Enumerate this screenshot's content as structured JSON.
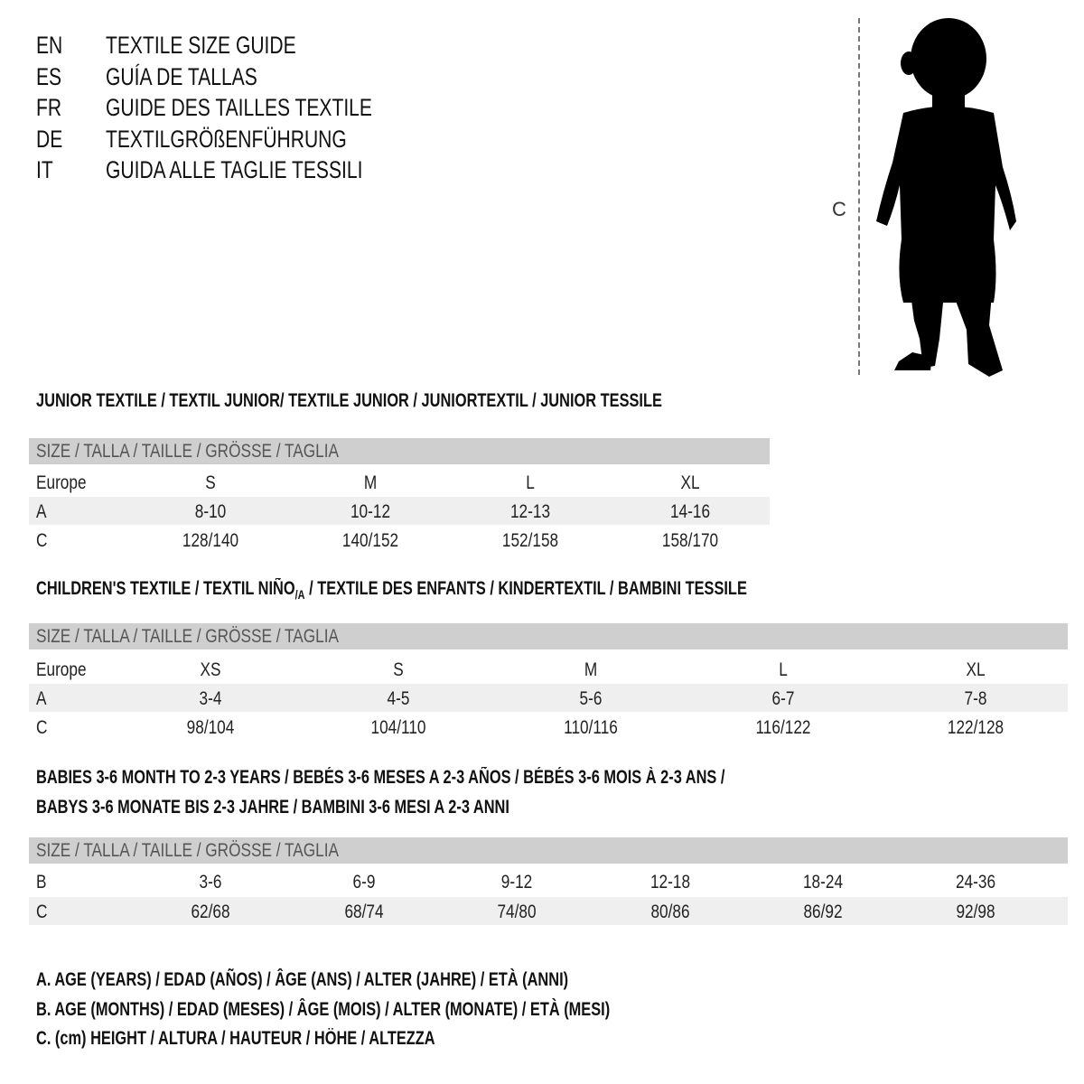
{
  "languages": [
    {
      "code": "EN",
      "text": "TEXTILE SIZE GUIDE"
    },
    {
      "code": "ES",
      "text": "GUÍA DE TALLAS"
    },
    {
      "code": "FR",
      "text": "GUIDE DES TAILLES TEXTILE"
    },
    {
      "code": "DE",
      "text": "TEXTILGRÖßENFÜHRUNG"
    },
    {
      "code": "IT",
      "text": "GUIDA ALLE TAGLIE TESSILI"
    }
  ],
  "figure": {
    "measure_label": "C"
  },
  "junior": {
    "title": "JUNIOR TEXTILE / TEXTIL JUNIOR/ TEXTILE JUNIOR / JUNIORTEXTIL / JUNIOR TESSILE",
    "header": "SIZE / TALLA / TAILLE / GRÖSSE / TAGLIA",
    "rows": [
      {
        "label": "Europe",
        "values": [
          "S",
          "M",
          "L",
          "XL"
        ]
      },
      {
        "label": "A",
        "values": [
          "8-10",
          "10-12",
          "12-13",
          "14-16"
        ]
      },
      {
        "label": "C",
        "values": [
          "128/140",
          "140/152",
          "152/158",
          "158/170"
        ]
      }
    ]
  },
  "children": {
    "title": "CHILDREN'S TEXTILE / TEXTIL NIÑO",
    "title_sub": "/A",
    "title_rest": " / TEXTILE DES ENFANTS / KINDERTEXTIL / BAMBINI TESSILE",
    "header": "SIZE / TALLA / TAILLE / GRÖSSE / TAGLIA",
    "rows": [
      {
        "label": "Europe",
        "values": [
          "XS",
          "S",
          "M",
          "L",
          "XL"
        ]
      },
      {
        "label": "A",
        "values": [
          "3-4",
          "4-5",
          "5-6",
          "6-7",
          "7-8"
        ]
      },
      {
        "label": "C",
        "values": [
          "98/104",
          "104/110",
          "110/116",
          "116/122",
          "122/128"
        ]
      }
    ]
  },
  "babies": {
    "title_line1": "BABIES 3-6 MONTH TO 2-3 YEARS / BEBÉS 3-6 MESES A 2-3 AÑOS / BÉBÉS 3-6 MOIS À 2-3 ANS /",
    "title_line2": "BABYS 3-6 MONATE BIS 2-3 JAHRE / BAMBINI 3-6 MESI A 2-3 ANNI",
    "header": "SIZE / TALLA / TAILLE / GRÖSSE / TAGLIA",
    "rows": [
      {
        "label": "B",
        "values": [
          "3-6",
          "6-9",
          "9-12",
          "12-18",
          "18-24",
          "24-36"
        ]
      },
      {
        "label": "C",
        "values": [
          "62/68",
          "68/74",
          "74/80",
          "80/86",
          "86/92",
          "92/98"
        ]
      }
    ]
  },
  "legend": [
    "A. AGE (YEARS) / EDAD (AÑOS) / ÂGE (ANS) / ALTER (JAHRE) / ETÀ (ANNI)",
    "B. AGE (MONTHS) / EDAD (MESES) / ÂGE (MOIS) / ALTER (MONATE) / ETÀ (MESI)",
    "C. (cm) HEIGHT / ALTURA / HAUTEUR / HÖHE / ALTEZZA"
  ]
}
